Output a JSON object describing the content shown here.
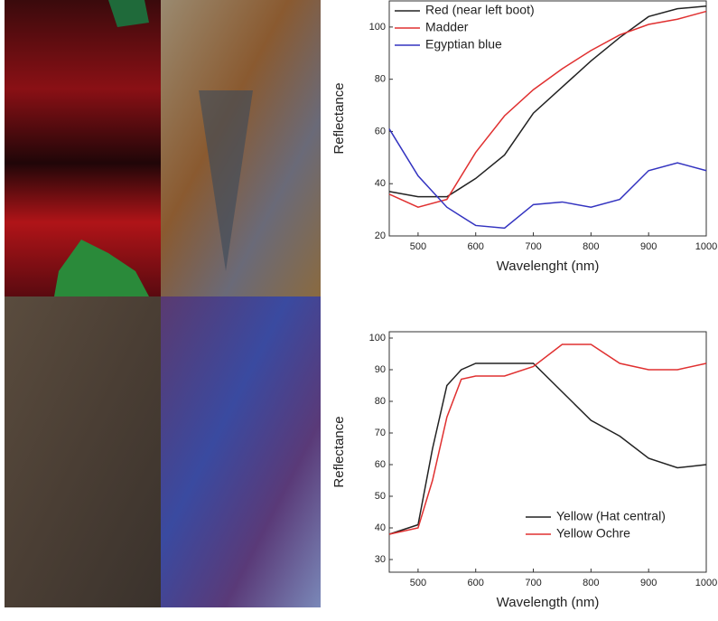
{
  "chart_data": [
    {
      "type": "line",
      "x_label": "Wavelenght (nm)",
      "y_label": "Reflectance",
      "x": [
        450,
        500,
        550,
        600,
        650,
        700,
        750,
        800,
        850,
        900,
        950,
        1000
      ],
      "xlim": [
        450,
        1000
      ],
      "xticks": [
        500,
        600,
        700,
        800,
        900,
        1000
      ],
      "ylim": [
        20,
        110
      ],
      "yticks": [
        20,
        40,
        60,
        80,
        100
      ],
      "legend": "upper left",
      "series": [
        {
          "name": "Red (near left boot)",
          "color": "#222222",
          "values": [
            37,
            35,
            35,
            42,
            51,
            67,
            77,
            87,
            96,
            104,
            107,
            108
          ]
        },
        {
          "name": "Madder",
          "color": "#e03030",
          "values": [
            36,
            31,
            34,
            52,
            66,
            76,
            84,
            91,
            97,
            101,
            103,
            106
          ]
        },
        {
          "name": "Egyptian blue",
          "color": "#3333c0",
          "values": [
            61,
            43,
            31,
            24,
            23,
            32,
            33,
            31,
            34,
            45,
            48,
            45
          ]
        }
      ]
    },
    {
      "type": "line",
      "x_label": "Wavelength (nm)",
      "y_label": "Reflectance",
      "x": [
        450,
        500,
        525,
        550,
        575,
        600,
        650,
        700,
        750,
        800,
        850,
        900,
        950,
        1000
      ],
      "xlim": [
        450,
        1000
      ],
      "xticks": [
        500,
        600,
        700,
        800,
        900,
        1000
      ],
      "ylim": [
        26,
        102
      ],
      "yticks": [
        30,
        40,
        50,
        60,
        70,
        80,
        90,
        100
      ],
      "legend": "lower right",
      "series": [
        {
          "name": "Yellow (Hat central)",
          "color": "#222222",
          "values": [
            38,
            41,
            65,
            85,
            90,
            92,
            92,
            92,
            83,
            74,
            69,
            62,
            59,
            60
          ]
        },
        {
          "name": "Yellow Ochre",
          "color": "#e03030",
          "values": [
            38,
            40,
            55,
            75,
            87,
            88,
            88,
            91,
            98,
            98,
            92,
            90,
            90,
            92
          ]
        }
      ]
    }
  ]
}
